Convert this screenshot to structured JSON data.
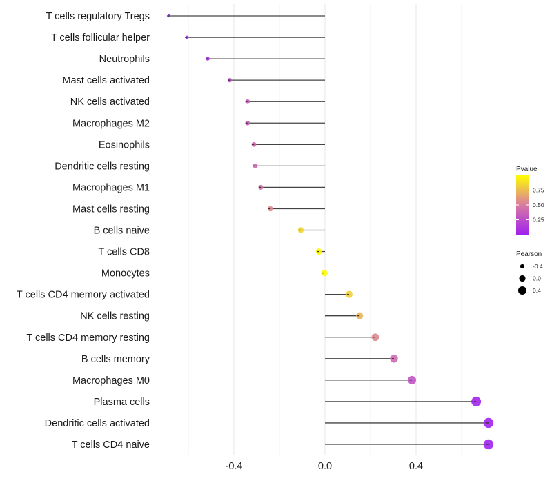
{
  "chart_data": {
    "type": "lollipop",
    "title": "",
    "xlabel": "",
    "ylabel": "",
    "xlim": [
      -0.72,
      0.82
    ],
    "xticks": [
      -0.4,
      0.0,
      0.4
    ],
    "xtick_labels": [
      "-0.4",
      "0.0",
      "0.4"
    ],
    "minor_gridlines": [
      -0.6,
      -0.2,
      0.2,
      0.6
    ],
    "grid": true,
    "categories": [
      "T cells regulatory  Tregs",
      "T cells follicular helper",
      "Neutrophils",
      "Mast cells activated",
      "NK cells activated",
      "Macrophages M2",
      "Eosinophils",
      "Dendritic cells resting",
      "Macrophages M1",
      "Mast cells resting",
      "B cells naive",
      "T cells CD8",
      "Monocytes",
      "T cells CD4 memory activated",
      "NK cells resting",
      "T cells CD4 memory resting",
      "B cells memory",
      "Macrophages M0",
      "Plasma cells",
      "Dendritic cells activated",
      "T cells CD4 naive"
    ],
    "values": [
      -0.685,
      -0.606,
      -0.515,
      -0.418,
      -0.34,
      -0.34,
      -0.312,
      -0.306,
      -0.282,
      -0.24,
      -0.106,
      -0.027,
      -0.003,
      0.106,
      0.152,
      0.221,
      0.303,
      0.382,
      0.664,
      0.718,
      0.718
    ],
    "pvalues": [
      0.01,
      0.02,
      0.1,
      0.25,
      0.35,
      0.35,
      0.4,
      0.4,
      0.45,
      0.55,
      0.85,
      0.97,
      0.99,
      0.82,
      0.72,
      0.55,
      0.4,
      0.28,
      0.02,
      0.01,
      0.01
    ],
    "legend": {
      "placement": "right",
      "color": {
        "title": "Pvalue",
        "ticks": [
          0.25,
          0.5,
          0.75
        ],
        "tick_labels": [
          "0.25",
          "0.50",
          "0.75"
        ],
        "range": [
          0.0,
          1.0
        ],
        "low_color": "#a020f0",
        "mid_color": "#d87ba0",
        "high_color": "#ffff00"
      },
      "size": {
        "title": "Pearson",
        "values": [
          -0.4,
          0.0,
          0.4
        ],
        "labels": [
          "-0.4",
          "0.0",
          "0.4"
        ]
      }
    }
  }
}
